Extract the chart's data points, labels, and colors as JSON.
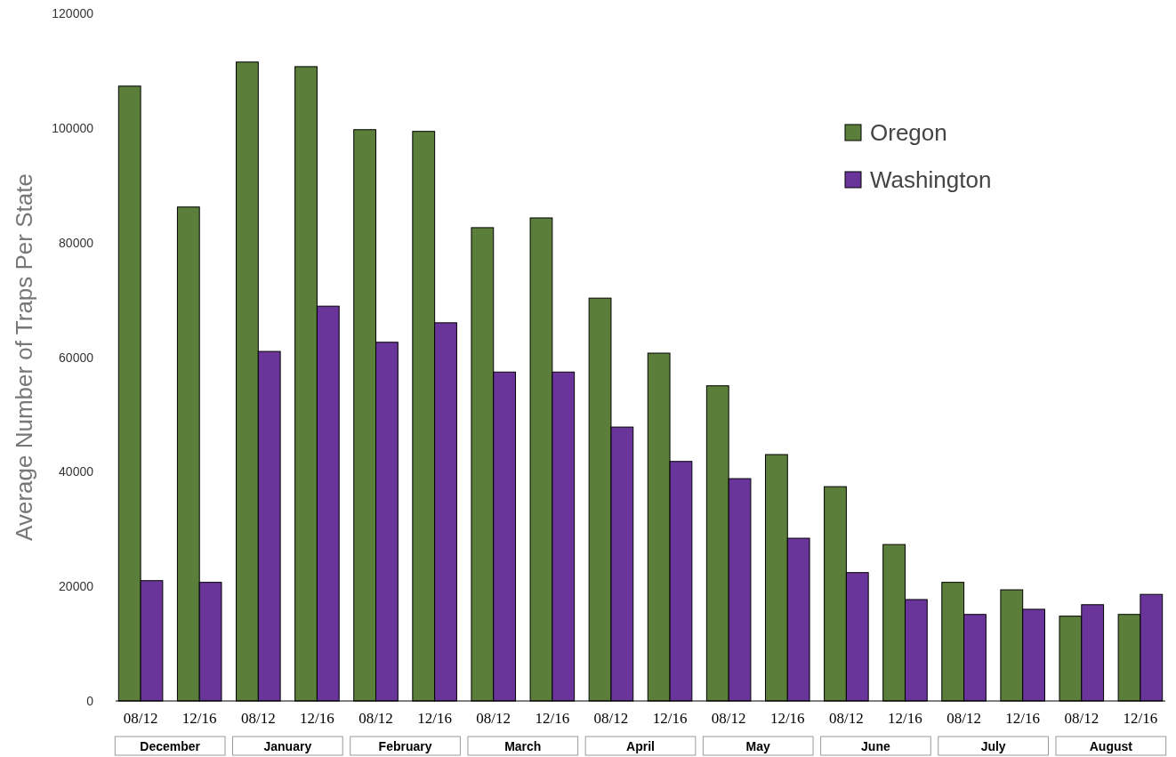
{
  "chart_data": {
    "type": "bar",
    "ylabel": "Average Number of Traps Per State",
    "categories": [
      "08/12",
      "12/16",
      "08/12",
      "12/16",
      "08/12",
      "12/16",
      "08/12",
      "12/16",
      "08/12",
      "12/16",
      "08/12",
      "12/16",
      "08/12",
      "12/16",
      "08/12",
      "12/16",
      "08/12",
      "12/16"
    ],
    "series": [
      {
        "name": "Oregon",
        "color": "#5b7f3a",
        "values": [
          107300,
          86200,
          111500,
          110700,
          99700,
          99400,
          82600,
          84300,
          70300,
          60700,
          55000,
          43000,
          37400,
          27300,
          20700,
          19400,
          14800,
          15100
        ]
      },
      {
        "name": "Washington",
        "color": "#6a359b",
        "values": [
          21000,
          20700,
          61000,
          68900,
          62600,
          66000,
          57400,
          57400,
          47800,
          41800,
          38800,
          28400,
          22400,
          17700,
          15100,
          16000,
          16800,
          18600
        ]
      }
    ],
    "ylim": [
      0,
      120000
    ],
    "yticks": [
      0,
      20000,
      40000,
      60000,
      80000,
      100000,
      120000
    ],
    "legend": "top right",
    "annotations": [
      "December",
      "January",
      "February",
      "March",
      "April",
      "May",
      "June",
      "July",
      "August"
    ]
  }
}
